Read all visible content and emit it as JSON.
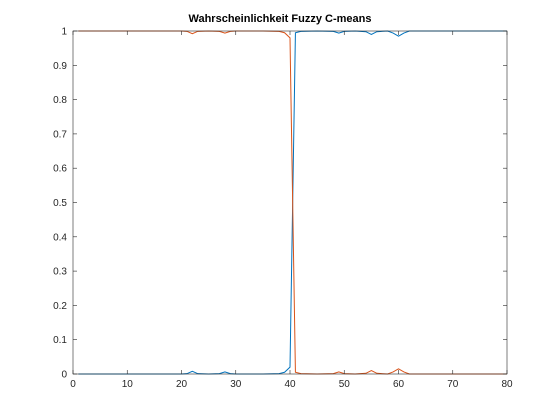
{
  "chart_data": {
    "type": "line",
    "title": "Wahrscheinlichkeit Fuzzy C-means",
    "xlabel": "",
    "ylabel": "",
    "xlim": [
      0,
      80
    ],
    "ylim": [
      0,
      1
    ],
    "xticks": [
      "0",
      "10",
      "20",
      "30",
      "40",
      "50",
      "60",
      "70",
      "80"
    ],
    "yticks": [
      "0",
      "0.1",
      "0.2",
      "0.3",
      "0.4",
      "0.5",
      "0.6",
      "0.7",
      "0.8",
      "0.9",
      "1"
    ],
    "grid": false,
    "legend": "none",
    "series": [
      {
        "color": "#0072BD",
        "x": [
          1,
          5,
          10,
          15,
          20,
          21,
          22,
          23,
          25,
          27,
          28,
          29,
          30,
          35,
          38,
          39,
          40,
          41,
          42,
          45,
          48,
          49,
          50,
          52,
          54,
          55,
          56,
          58,
          59,
          60,
          61,
          62,
          65,
          70,
          75,
          80
        ],
        "y": [
          0,
          0,
          0,
          0,
          0,
          0.001,
          0.008,
          0.001,
          0,
          0.001,
          0.006,
          0.001,
          0,
          0,
          0.001,
          0.005,
          0.02,
          0.995,
          0.999,
          1,
          0.999,
          0.994,
          0.999,
          1,
          0.998,
          0.99,
          0.998,
          1,
          0.994,
          0.985,
          0.994,
          1,
          1,
          1,
          1,
          1
        ]
      },
      {
        "color": "#D95319",
        "x": [
          1,
          5,
          10,
          15,
          20,
          21,
          22,
          23,
          25,
          27,
          28,
          29,
          30,
          35,
          38,
          39,
          40,
          41,
          42,
          45,
          48,
          49,
          50,
          52,
          54,
          55,
          56,
          58,
          59,
          60,
          61,
          62,
          65,
          70,
          75,
          80
        ],
        "y": [
          1,
          1,
          1,
          1,
          1,
          0.999,
          0.992,
          0.999,
          1,
          0.999,
          0.994,
          0.999,
          1,
          1,
          0.999,
          0.995,
          0.98,
          0.005,
          0.001,
          0,
          0.001,
          0.006,
          0.001,
          0,
          0.002,
          0.01,
          0.002,
          0,
          0.006,
          0.015,
          0.006,
          0,
          0,
          0,
          0,
          0
        ]
      }
    ]
  }
}
